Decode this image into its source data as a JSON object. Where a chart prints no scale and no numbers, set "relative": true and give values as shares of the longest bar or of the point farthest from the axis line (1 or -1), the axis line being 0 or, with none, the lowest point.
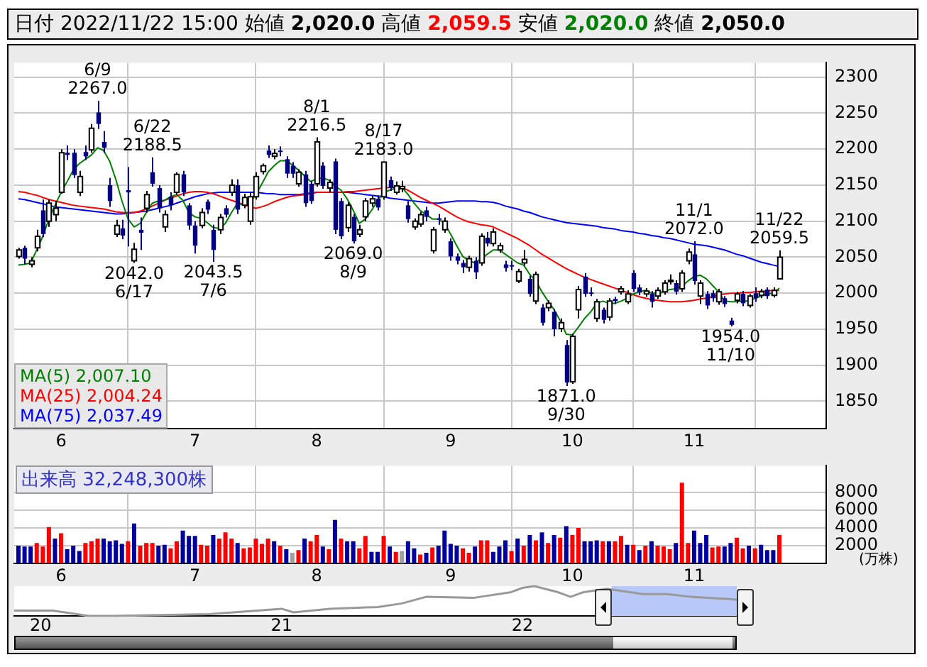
{
  "chart_data": [
    {
      "type": "candlestick",
      "title": "日付 2022/11/22 15:00 始値 2,020.0 高値 2,059.5 安値 2,020.0 終値 2,050.0",
      "categories": [
        null,
        null,
        null,
        null,
        null,
        null,
        null,
        "6",
        null,
        null,
        null,
        null,
        null,
        null,
        null,
        null,
        null,
        null,
        null,
        null,
        null,
        null,
        null,
        null,
        null,
        null,
        null,
        null,
        null,
        "7",
        null,
        null,
        null,
        null,
        null,
        null,
        null,
        null,
        null,
        null,
        null,
        null,
        null,
        null,
        null,
        null,
        null,
        null,
        null,
        "8",
        null,
        null,
        null,
        null,
        null,
        null,
        null,
        null,
        null,
        null,
        null,
        null,
        null,
        null,
        null,
        null,
        null,
        null,
        null,
        null,
        null,
        "9",
        null,
        null,
        null,
        null,
        null,
        null,
        null,
        null,
        null,
        null,
        null,
        null,
        null,
        null,
        null,
        null,
        null,
        null,
        null,
        "10",
        null,
        null,
        null,
        null,
        null,
        null,
        null,
        null,
        null,
        null,
        null,
        null,
        null,
        null,
        null,
        null,
        null,
        null,
        null,
        "11",
        null,
        null,
        null,
        null,
        null,
        null,
        null,
        null,
        null,
        null,
        null,
        null,
        null,
        null
      ],
      "ohlc": [
        [
          2051,
          2063,
          2048,
          2060
        ],
        [
          2063,
          2066,
          2040,
          2048
        ],
        [
          2040,
          2050,
          2036,
          2045
        ],
        [
          2063,
          2088,
          2058,
          2079
        ],
        [
          2115,
          2130,
          2078,
          2082
        ],
        [
          2100,
          2130,
          2092,
          2125
        ],
        [
          2109,
          2128,
          2100,
          2118
        ],
        [
          2140,
          2200,
          2138,
          2195
        ],
        [
          2195,
          2205,
          2185,
          2192
        ],
        [
          2195,
          2200,
          2160,
          2164
        ],
        [
          2140,
          2170,
          2135,
          2162
        ],
        [
          2196,
          2205,
          2185,
          2190
        ],
        [
          2199,
          2235,
          2195,
          2229
        ],
        [
          2251,
          2267.0,
          2228,
          2235
        ],
        [
          2210,
          2225,
          2195,
          2202
        ],
        [
          2150,
          2160,
          2120,
          2128
        ],
        [
          2082,
          2102,
          2078,
          2094
        ],
        [
          2090,
          2102,
          2075,
          2080
        ],
        [
          2143,
          2175,
          2065,
          2140
        ],
        [
          2045,
          2070,
          2042.0,
          2061
        ],
        [
          2088,
          2105,
          2060,
          2084
        ],
        [
          2118,
          2142,
          2112,
          2137
        ],
        [
          2168,
          2188.5,
          2148,
          2152
        ],
        [
          2146,
          2150,
          2112,
          2118
        ],
        [
          2092,
          2115,
          2085,
          2109
        ],
        [
          2134,
          2140,
          2115,
          2122
        ],
        [
          2140,
          2168,
          2136,
          2165
        ],
        [
          2165,
          2170,
          2135,
          2140
        ],
        [
          2122,
          2125,
          2088,
          2094
        ],
        [
          2094,
          2100,
          2055,
          2066
        ],
        [
          2094,
          2118,
          2090,
          2112
        ],
        [
          2127,
          2130,
          2110,
          2116
        ],
        [
          2088,
          2095,
          2043.5,
          2060
        ],
        [
          2088,
          2110,
          2082,
          2105
        ],
        [
          2118,
          2122,
          2105,
          2109
        ],
        [
          2140,
          2158,
          2135,
          2150
        ],
        [
          2150,
          2158,
          2110,
          2116
        ],
        [
          2122,
          2138,
          2118,
          2133
        ],
        [
          2100,
          2140,
          2095,
          2134
        ],
        [
          2134,
          2168,
          2130,
          2162
        ],
        [
          2169,
          2180,
          2165,
          2177
        ],
        [
          2198,
          2205,
          2188,
          2192
        ],
        [
          2190,
          2200,
          2186,
          2194
        ],
        [
          2198,
          2204,
          2190,
          2197
        ],
        [
          2186,
          2190,
          2160,
          2166
        ],
        [
          2177,
          2182,
          2160,
          2166
        ],
        [
          2152,
          2172,
          2148,
          2168
        ],
        [
          2165,
          2170,
          2120,
          2125
        ],
        [
          2152,
          2156,
          2124,
          2128
        ],
        [
          2152,
          2216.5,
          2148,
          2210
        ],
        [
          2177,
          2182,
          2145,
          2149
        ],
        [
          2146,
          2158,
          2140,
          2154
        ],
        [
          2183,
          2187,
          2082,
          2088
        ],
        [
          2128,
          2132,
          2075,
          2079
        ],
        [
          2091,
          2126,
          2085,
          2122
        ],
        [
          2106,
          2110,
          2069.0,
          2072
        ],
        [
          2082,
          2095,
          2078,
          2088
        ],
        [
          2106,
          2132,
          2100,
          2128
        ],
        [
          2125,
          2135,
          2120,
          2131
        ],
        [
          2131,
          2136,
          2115,
          2119
        ],
        [
          2134,
          2183.0,
          2130,
          2182
        ],
        [
          2157,
          2162,
          2142,
          2146
        ],
        [
          2140,
          2155,
          2137,
          2149
        ],
        [
          2145,
          2156,
          2140,
          2148
        ],
        [
          2122,
          2128,
          2098,
          2103
        ],
        [
          2092,
          2104,
          2088,
          2100
        ],
        [
          2096,
          2113,
          2092,
          2109
        ],
        [
          2115,
          2120,
          2100,
          2106
        ],
        [
          2059,
          2092,
          2055,
          2088
        ],
        [
          2104,
          2110,
          2095,
          2103
        ],
        [
          2088,
          2105,
          2084,
          2100
        ],
        [
          2072,
          2076,
          2045,
          2051
        ],
        [
          2051,
          2055,
          2040,
          2045
        ],
        [
          2042,
          2046,
          2028,
          2036
        ],
        [
          2036,
          2052,
          2030,
          2048
        ],
        [
          2045,
          2050,
          2020,
          2029
        ],
        [
          2042,
          2083,
          2038,
          2079
        ],
        [
          2077,
          2085,
          2065,
          2069
        ],
        [
          2069,
          2090,
          2065,
          2085
        ],
        [
          2060,
          2070,
          2056,
          2066
        ],
        [
          2040,
          2045,
          2030,
          2035
        ],
        [
          2039,
          2045,
          2032,
          2038
        ],
        [
          2017,
          2034,
          2014,
          2030
        ],
        [
          2042,
          2060,
          2038,
          2047
        ],
        [
          2020,
          2024,
          1995,
          1999
        ],
        [
          1989,
          2030,
          1985,
          2026
        ],
        [
          1980,
          1985,
          1955,
          1959
        ],
        [
          1980,
          1990,
          1975,
          1986
        ],
        [
          1974,
          1978,
          1940,
          1950
        ],
        [
          1951,
          1965,
          1946,
          1959
        ],
        [
          1928,
          1935,
          1871.0,
          1876
        ],
        [
          1877,
          1944,
          1874,
          1940
        ],
        [
          1977,
          2010,
          1965,
          2005
        ],
        [
          2023,
          2028,
          1995,
          1999
        ],
        [
          2001,
          2008,
          1996,
          2000
        ],
        [
          1965,
          1992,
          1960,
          1988
        ],
        [
          1977,
          1980,
          1958,
          1963
        ],
        [
          1967,
          1993,
          1962,
          1989
        ],
        [
          1992,
          1995,
          1985,
          1989
        ],
        [
          2002,
          2010,
          1998,
          2006
        ],
        [
          1988,
          2004,
          1985,
          1999
        ],
        [
          2028,
          2032,
          2002,
          2006
        ],
        [
          2008,
          2012,
          1997,
          2001
        ],
        [
          1999,
          2007,
          1995,
          2003
        ],
        [
          1999,
          2003,
          1980,
          1988
        ],
        [
          1996,
          2008,
          1992,
          2004
        ],
        [
          2002,
          2018,
          1998,
          2014
        ],
        [
          2017,
          2026,
          2012,
          2018
        ],
        [
          2014,
          2018,
          1998,
          2002
        ],
        [
          2006,
          2032,
          2002,
          2028
        ],
        [
          2045,
          2062,
          2040,
          2057
        ],
        [
          2054,
          2072.0,
          2012,
          2017
        ],
        [
          1996,
          2018,
          1985,
          2014
        ],
        [
          1999,
          2003,
          1978,
          1983
        ],
        [
          2000,
          2004,
          1988,
          1993
        ],
        [
          1988,
          2006,
          1984,
          2002
        ],
        [
          1993,
          1996,
          1981,
          1985
        ],
        [
          1962,
          1966,
          1954.0,
          1956
        ],
        [
          1990,
          2002,
          1986,
          1999
        ],
        [
          1999,
          2003,
          1982,
          1986
        ],
        [
          1983,
          1999,
          1980,
          1996
        ],
        [
          2000,
          2008,
          1988,
          1993
        ],
        [
          1997,
          2006,
          1993,
          2002
        ],
        [
          2005,
          2008,
          1992,
          1996
        ],
        [
          1997,
          2008,
          1994,
          2004
        ],
        [
          2020,
          2059.5,
          2020,
          2050
        ]
      ],
      "series": [
        {
          "name": "MA(5) 2,007.10",
          "type": "line",
          "color": "#008000",
          "values": [
            2039,
            2040,
            2042,
            2060,
            2079,
            2103,
            2122,
            2140,
            2155,
            2171,
            2180,
            2186,
            2192,
            2202,
            2198,
            2183,
            2158,
            2128,
            2103,
            2092,
            2097,
            2112,
            2125,
            2128,
            2129,
            2134,
            2137,
            2129,
            2112,
            2106,
            2104,
            2098,
            2091,
            2090,
            2097,
            2112,
            2125,
            2122,
            2125,
            2137,
            2152,
            2168,
            2177,
            2184,
            2184,
            2178,
            2171,
            2163,
            2155,
            2159,
            2160,
            2157,
            2149,
            2143,
            2131,
            2115,
            2097,
            2103,
            2115,
            2128,
            2140,
            2143,
            2146,
            2147,
            2137,
            2125,
            2115,
            2109,
            2103,
            2103,
            2097,
            2082,
            2066,
            2051,
            2045,
            2042,
            2048,
            2054,
            2060,
            2060,
            2054,
            2048,
            2042,
            2039,
            2026,
            2017,
            2002,
            1989,
            1977,
            1962,
            1943,
            1942,
            1953,
            1965,
            1974,
            1986,
            1989,
            1986,
            1986,
            1989,
            1993,
            1999,
            2002,
            2004,
            2000,
            2000,
            2002,
            2005,
            2006,
            2010,
            2017,
            2023,
            2025,
            2020,
            2011,
            2002,
            1989,
            1988,
            1988,
            1989,
            1989,
            1993,
            1996,
            1999,
            2000,
            2007
          ]
        },
        {
          "name": "MA(25) 2,004.24",
          "type": "line",
          "color": "#ff0000",
          "values": [
            2141,
            2140,
            2138,
            2136,
            2133,
            2130,
            2128,
            2126,
            2124,
            2122,
            2121,
            2120,
            2119,
            2118,
            2117,
            2115,
            2113,
            2112,
            2112,
            2112,
            2114,
            2117,
            2121,
            2125,
            2129,
            2132,
            2135,
            2138,
            2140,
            2141,
            2141,
            2140,
            2138,
            2135,
            2132,
            2129,
            2126,
            2123,
            2120,
            2118,
            2120,
            2123,
            2127,
            2130,
            2133,
            2135,
            2136,
            2137,
            2138,
            2140,
            2140,
            2140,
            2140,
            2140,
            2141,
            2141,
            2142,
            2143,
            2144,
            2145,
            2146,
            2147,
            2147,
            2146,
            2143,
            2138,
            2133,
            2129,
            2125,
            2121,
            2116,
            2111,
            2106,
            2102,
            2099,
            2097,
            2095,
            2094,
            2092,
            2088,
            2084,
            2080,
            2076,
            2071,
            2066,
            2060,
            2054,
            2049,
            2044,
            2039,
            2034,
            2030,
            2026,
            2022,
            2019,
            2016,
            2013,
            2010,
            2007,
            2004,
            2001,
            1998,
            1995,
            1993,
            1991,
            1990,
            1989,
            1988,
            1988,
            1988,
            1989,
            1990,
            1992,
            1993,
            1995,
            1997,
            1999,
            2000,
            2000,
            2001,
            2001,
            2002,
            2003,
            2003,
            2004,
            2004
          ]
        },
        {
          "name": "MA(75) 2,037.49",
          "type": "line",
          "color": "#0000ff",
          "values": [
            2131,
            2130,
            2128,
            2126,
            2124,
            2122,
            2120,
            2119,
            2118,
            2117,
            2116,
            2115,
            2114,
            2113,
            2112,
            2111,
            2110,
            2110,
            2111,
            2112,
            2113,
            2114,
            2116,
            2118,
            2120,
            2122,
            2125,
            2128,
            2131,
            2134,
            2136,
            2138,
            2139,
            2140,
            2140,
            2140,
            2140,
            2140,
            2140,
            2140,
            2139,
            2138,
            2138,
            2137,
            2137,
            2137,
            2137,
            2138,
            2139,
            2140,
            2140,
            2140,
            2140,
            2140,
            2140,
            2139,
            2138,
            2137,
            2136,
            2135,
            2134,
            2132,
            2131,
            2130,
            2129,
            2128,
            2127,
            2126,
            2125,
            2125,
            2126,
            2127,
            2128,
            2128,
            2128,
            2128,
            2127,
            2127,
            2126,
            2124,
            2121,
            2119,
            2117,
            2114,
            2112,
            2109,
            2106,
            2104,
            2102,
            2100,
            2098,
            2097,
            2096,
            2095,
            2094,
            2093,
            2091,
            2090,
            2089,
            2087,
            2086,
            2085,
            2083,
            2082,
            2080,
            2079,
            2077,
            2076,
            2074,
            2072,
            2070,
            2068,
            2067,
            2066,
            2064,
            2062,
            2060,
            2057,
            2054,
            2052,
            2049,
            2046,
            2043,
            2041,
            2039,
            2037
          ]
        }
      ],
      "ylim": [
        1812,
        2320
      ],
      "yticks": [
        1850,
        1900,
        1950,
        2000,
        2050,
        2100,
        2150,
        2200,
        2250,
        2300
      ],
      "grid": true,
      "legend": "bottom left",
      "annotations": [
        {
          "text": "6/9\n2267.0",
          "y": 2267.0
        },
        {
          "text": "2042.0\n6/17",
          "y": 2042.0
        },
        {
          "text": "6/22\n2188.5",
          "y": 2188.5
        },
        {
          "text": "2043.5\n7/6",
          "y": 2043.5
        },
        {
          "text": "8/1\n2216.5",
          "y": 2216.5
        },
        {
          "text": "2069.0\n8/9",
          "y": 2069.0
        },
        {
          "text": "8/17\n2183.0",
          "y": 2183.0
        },
        {
          "text": "1871.0\n9/30",
          "y": 1871.0
        },
        {
          "text": "11/1\n2072.0",
          "y": 2072.0
        },
        {
          "text": "1954.0\n11/10",
          "y": 1954.0
        },
        {
          "text": "11/22\n2059.5",
          "y": 2059.5
        }
      ]
    },
    {
      "type": "bar",
      "title": "出来高 32,248,300株",
      "ylabel": "(万株)",
      "categories": [
        null,
        null,
        null,
        null,
        null,
        null,
        null,
        "6",
        null,
        null,
        null,
        null,
        null,
        null,
        null,
        null,
        null,
        null,
        null,
        null,
        null,
        null,
        null,
        null,
        null,
        null,
        null,
        null,
        null,
        "7",
        null,
        null,
        null,
        null,
        null,
        null,
        null,
        null,
        null,
        null,
        null,
        null,
        null,
        null,
        null,
        null,
        null,
        null,
        null,
        "8",
        null,
        null,
        null,
        null,
        null,
        null,
        null,
        null,
        null,
        null,
        null,
        null,
        null,
        null,
        null,
        null,
        null,
        null,
        null,
        null,
        null,
        "9",
        null,
        null,
        null,
        null,
        null,
        null,
        null,
        null,
        null,
        null,
        null,
        null,
        null,
        null,
        null,
        null,
        null,
        null,
        null,
        "10",
        null,
        null,
        null,
        null,
        null,
        null,
        null,
        null,
        null,
        null,
        null,
        null,
        null,
        null,
        null,
        null,
        null,
        null,
        null,
        "11",
        null,
        null,
        null,
        null,
        null,
        null,
        null,
        null,
        null,
        null,
        null,
        null,
        null,
        null
      ],
      "values": [
        2000,
        1900,
        1900,
        2300,
        1900,
        4100,
        2800,
        3400,
        1600,
        2000,
        1400,
        2300,
        2500,
        2800,
        2800,
        2500,
        2600,
        2200,
        2500,
        4500,
        2000,
        2300,
        2300,
        2000,
        2100,
        1700,
        2500,
        3700,
        3100,
        3100,
        2100,
        2000,
        3200,
        2800,
        3500,
        2800,
        2300,
        1700,
        1800,
        2800,
        2200,
        2800,
        2500,
        2000,
        1600,
        1200,
        1500,
        2800,
        2500,
        3200,
        1900,
        1600,
        4900,
        2800,
        2500,
        2500,
        1700,
        3100,
        1300,
        1300,
        3100,
        1900,
        1300,
        1400,
        2500,
        1700,
        1000,
        1200,
        1800,
        2000,
        3700,
        2200,
        2000,
        1700,
        1200,
        1900,
        2600,
        2600,
        1300,
        1900,
        2600,
        1400,
        2800,
        2000,
        3200,
        2600,
        3500,
        2300,
        3200,
        2900,
        4200,
        3200,
        4000,
        2500,
        2500,
        2600,
        2500,
        2500,
        2500,
        3100,
        2100,
        2100,
        1500,
        2000,
        2500,
        2000,
        1900,
        1600,
        2300,
        9100,
        2300,
        3700,
        2300,
        3200,
        1800,
        1900,
        1900,
        2300,
        2900,
        1700,
        2000,
        1700,
        2100,
        1500,
        1500,
        3200
      ],
      "colors": [
        "#0000a0",
        "#0000a0",
        "#0000a0",
        "#ff0000",
        "#ff0000",
        "#ff0000",
        "#0000a0",
        "#ff0000",
        "#0000a0",
        "#0000a0",
        "#0000a0",
        "#ff0000",
        "#ff0000",
        "#ff0000",
        "#0000a0",
        "#0000a0",
        "#0000a0",
        "#0000a0",
        "#ff0000",
        "#0000a0",
        "#ff0000",
        "#ff0000",
        "#ff0000",
        "#0000a0",
        "#0000a0",
        "#ff0000",
        "#ff0000",
        "#0000a0",
        "#0000a0",
        "#0000a0",
        "#ff0000",
        "#ff0000",
        "#0000a0",
        "#ff0000",
        "#ff0000",
        "#ff0000",
        "#0000a0",
        "#ff0000",
        "#ff0000",
        "#ff0000",
        "#ff0000",
        "#ff0000",
        "#0000a0",
        "#ff0000",
        "#0000a0",
        "#a0a0a0",
        "#ff0000",
        "#0000a0",
        "#ff0000",
        "#ff0000",
        "#0000a0",
        "#ff0000",
        "#0000a0",
        "#ff0000",
        "#0000a0",
        "#0000a0",
        "#ff0000",
        "#ff0000",
        "#0000a0",
        "#0000a0",
        "#ff0000",
        "#0000a0",
        "#ff0000",
        "#a0a0a0",
        "#0000a0",
        "#0000a0",
        "#ff0000",
        "#0000a0",
        "#ff0000",
        "#0000a0",
        "#0000a0",
        "#0000a0",
        "#0000a0",
        "#ff0000",
        "#ff0000",
        "#0000a0",
        "#ff0000",
        "#ff0000",
        "#0000a0",
        "#0000a0",
        "#0000a0",
        "#ff0000",
        "#0000a0",
        "#ff0000",
        "#0000a0",
        "#ff0000",
        "#0000a0",
        "#ff0000",
        "#0000a0",
        "#ff0000",
        "#0000a0",
        "#ff0000",
        "#ff0000",
        "#0000a0",
        "#0000a0",
        "#0000a0",
        "#ff0000",
        "#0000a0",
        "#ff0000",
        "#ff0000",
        "#0000a0",
        "#ff0000",
        "#0000a0",
        "#ff0000",
        "#0000a0",
        "#ff0000",
        "#ff0000",
        "#ff0000",
        "#0000a0",
        "#ff0000",
        "#ff0000",
        "#0000a0",
        "#0000a0",
        "#0000a0",
        "#ff0000",
        "#ff0000",
        "#0000a0",
        "#0000a0",
        "#ff0000",
        "#ff0000",
        "#0000a0",
        "#ff0000",
        "#0000a0",
        "#0000a0",
        "#0000a0",
        "#ff0000"
      ],
      "ylim": [
        0,
        11000
      ],
      "yticks": [
        2000,
        4000,
        6000,
        8000
      ],
      "grid": true
    },
    {
      "type": "line",
      "relative": true,
      "color": "#999999",
      "x": [
        19.89,
        20.05,
        20.1,
        20.2,
        20.3,
        20.5,
        20.7,
        20.9,
        21.0,
        21.05,
        21.2,
        21.4,
        21.5,
        21.6,
        21.8,
        21.95,
        22.0,
        22.05,
        22.15,
        22.2,
        22.25,
        22.35,
        22.4,
        22.5,
        22.6,
        22.7,
        22.89
      ],
      "values": [
        0.18,
        0.18,
        0.12,
        0,
        0,
        0.03,
        0.06,
        0.18,
        0.24,
        0.12,
        0.24,
        0.3,
        0.42,
        0.64,
        0.61,
        0.79,
        0.94,
        1,
        0.79,
        0.64,
        0.79,
        0.91,
        0.85,
        0.73,
        0.73,
        0.64,
        0.55
      ],
      "xlim": [
        19.89,
        22.89
      ],
      "xticks": [
        20,
        21,
        22
      ],
      "bands": [
        {
          "axis": "x",
          "from": 22.37,
          "to": 22.89,
          "color": "#b8c8f8"
        }
      ]
    }
  ]
}
